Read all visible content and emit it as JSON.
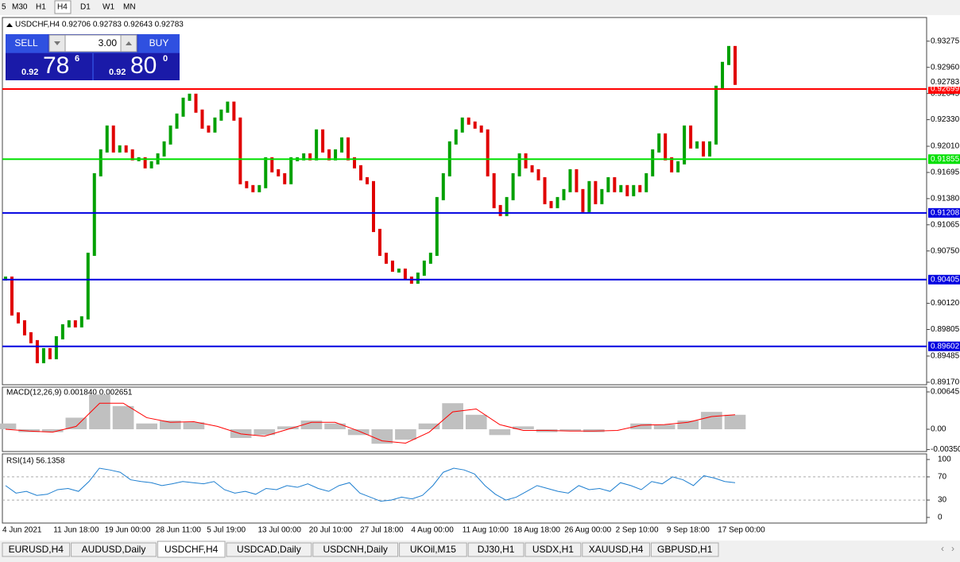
{
  "toolbar": {
    "timeframes": [
      "5",
      "M30",
      "H1",
      "H4",
      "D1",
      "W1",
      "MN"
    ]
  },
  "trade_panel": {
    "sell": "SELL",
    "lots": "3.00",
    "buy": "BUY",
    "sell_prefix": "0.92",
    "sell_big": "78",
    "sell_small": "6",
    "buy_prefix": "0.92",
    "buy_big": "80",
    "buy_small": "0"
  },
  "chart_data": [
    {
      "type": "candlestick",
      "title": "USDCHF,H4  0.92706 0.92783 0.92643 0.92783",
      "values": [
        0.90423,
        0.89992,
        0.89897,
        0.89753,
        0.89658,
        0.89418,
        0.89562,
        0.89466,
        0.89705,
        0.89849,
        0.89897,
        0.89849,
        0.89945,
        0.9071,
        0.91667,
        0.91954,
        0.92241,
        0.91954,
        0.92002,
        0.91954,
        0.91859,
        0.91859,
        0.91763,
        0.91811,
        0.91906,
        0.9205,
        0.92241,
        0.92385,
        0.92576,
        0.92624,
        0.92433,
        0.92241,
        0.92194,
        0.92337,
        0.92433,
        0.92529,
        0.92337,
        0.91572,
        0.91524,
        0.91476,
        0.91524,
        0.91859,
        0.91715,
        0.91667,
        0.91572,
        0.91859,
        0.91859,
        0.91906,
        0.91859,
        0.92194,
        0.91954,
        0.91859,
        0.91954,
        0.92098,
        0.91859,
        0.91763,
        0.91619,
        0.91572,
        0.90997,
        0.9071,
        0.90615,
        0.90519,
        0.90519,
        0.90423,
        0.90375,
        0.90471,
        0.90615,
        0.9071,
        0.9138,
        0.91667,
        0.9205,
        0.92194,
        0.92337,
        0.92289,
        0.92241,
        0.92194,
        0.91667,
        0.91284,
        0.91189,
        0.9138,
        0.91667,
        0.91906,
        0.91763,
        0.91715,
        0.91619,
        0.91332,
        0.91284,
        0.9138,
        0.91476,
        0.91715,
        0.91476,
        0.91237,
        0.91572,
        0.91332,
        0.91476,
        0.91619,
        0.91476,
        0.91524,
        0.91428,
        0.91524,
        0.91476,
        0.91667,
        0.91954,
        0.92146,
        0.91859,
        0.91715,
        0.91811,
        0.92241,
        0.92002,
        0.9205,
        0.91906,
        0.9205,
        0.9272,
        0.93007,
        0.93198,
        0.92768
      ],
      "up_color": "#00a000",
      "down_color": "#e00000",
      "ylim": [
        0.8914,
        0.9356
      ],
      "yticks": [
        0.93275,
        {
          "value": 0.9296,
          "label": "0.92960"
        },
        0.92645,
        {
          "value": 0.9233,
          "label": "0.92330"
        },
        {
          "value": 0.9201,
          "label": "0.92010"
        },
        0.91695,
        {
          "value": 0.9138,
          "label": "0.91380"
        },
        0.91065,
        {
          "value": 0.9075,
          "label": "0.90750"
        },
        {
          "value": 0.9012,
          "label": "0.90120"
        },
        0.89805,
        0.89485,
        {
          "value": 0.8917,
          "label": "0.89170"
        }
      ],
      "levels": [
        {
          "value": 0.92699,
          "color": "#ff0000"
        },
        {
          "value": 0.91855,
          "color": "#00e000"
        },
        {
          "value": 0.91208,
          "color": "#0000e0"
        },
        {
          "value": 0.90405,
          "color": "#0000e0"
        },
        {
          "value": 0.89602,
          "color": "#0000e0"
        }
      ],
      "price_label": 0.92783,
      "time_labels": [
        "4 Jun 2021",
        "11 Jun 18:00",
        "19 Jun 00:00",
        "28 Jun 11:00",
        "5 Jul 19:00",
        "13 Jul 00:00",
        "20 Jul 10:00",
        "27 Jul 18:00",
        "4 Aug 00:00",
        "11 Aug 10:00",
        "18 Aug 18:00",
        "26 Aug 00:00",
        "2 Sep 10:00",
        "9 Sep 18:00",
        "17 Sep 00:00"
      ]
    },
    {
      "type": "macd",
      "title": "MACD(12,26,9) 0.001840 0.002651",
      "histogram": [
        0.001,
        -0.0005,
        -0.0005,
        0.002,
        0.006,
        0.004,
        0.001,
        0.0015,
        0.0012,
        0,
        -0.0015,
        -0.001,
        0.0005,
        0.0015,
        0.001,
        -0.001,
        -0.0025,
        -0.0018,
        0.001,
        0.0045,
        0.0025,
        -0.001,
        0.0005,
        -0.0005,
        -0.0003,
        -0.0005,
        0,
        0.001,
        0.0008,
        0.0015,
        0.003,
        0.0025
      ],
      "signal": [
        0,
        -0.0003,
        -0.0005,
        0.0005,
        0.0045,
        0.0045,
        0.002,
        0.0012,
        0.0013,
        0.0005,
        -0.0008,
        -0.0012,
        0,
        0.0012,
        0.0012,
        -0.0003,
        -0.002,
        -0.0024,
        -0.0005,
        0.003,
        0.0035,
        0.0008,
        -0.0002,
        -0.0002,
        -0.0003,
        -0.0003,
        -0.0002,
        0.0007,
        0.0008,
        0.0012,
        0.0022,
        0.0025
      ],
      "histogram_color": "#c0c0c0",
      "signal_color": "#ff0000",
      "ylim": [
        -0.00384,
        0.007274
      ],
      "yticks": [
        0.006451,
        {
          "value": 0,
          "label": "0.00"
        },
        -0.003507
      ]
    },
    {
      "type": "rsi",
      "title": "RSI(14) 56.1358",
      "values": [
        55,
        42,
        45,
        38,
        40,
        48,
        50,
        45,
        62,
        85,
        82,
        78,
        65,
        62,
        60,
        55,
        58,
        62,
        60,
        58,
        62,
        48,
        42,
        45,
        40,
        50,
        48,
        55,
        52,
        58,
        50,
        45,
        55,
        60,
        42,
        35,
        28,
        30,
        35,
        32,
        38,
        55,
        78,
        85,
        82,
        75,
        55,
        40,
        30,
        35,
        45,
        55,
        50,
        45,
        42,
        55,
        48,
        50,
        45,
        60,
        55,
        48,
        62,
        58,
        70,
        65,
        55,
        72,
        68,
        62,
        60
      ],
      "color": "#1e7fd0",
      "ylim": [
        -9.7,
        109.7
      ],
      "yticks": [
        100,
        70,
        30,
        0
      ]
    }
  ],
  "tabs": [
    "EURUSD,H4",
    "AUDUSD,Daily",
    "USDCHF,H4",
    "USDCAD,Daily",
    "USDCNH,Daily",
    "UKOil,M15",
    "DJ30,H1",
    "USDX,H1",
    "XAUUSD,H4",
    "GBPUSD,H1"
  ],
  "active_tab": "USDCHF,H4"
}
